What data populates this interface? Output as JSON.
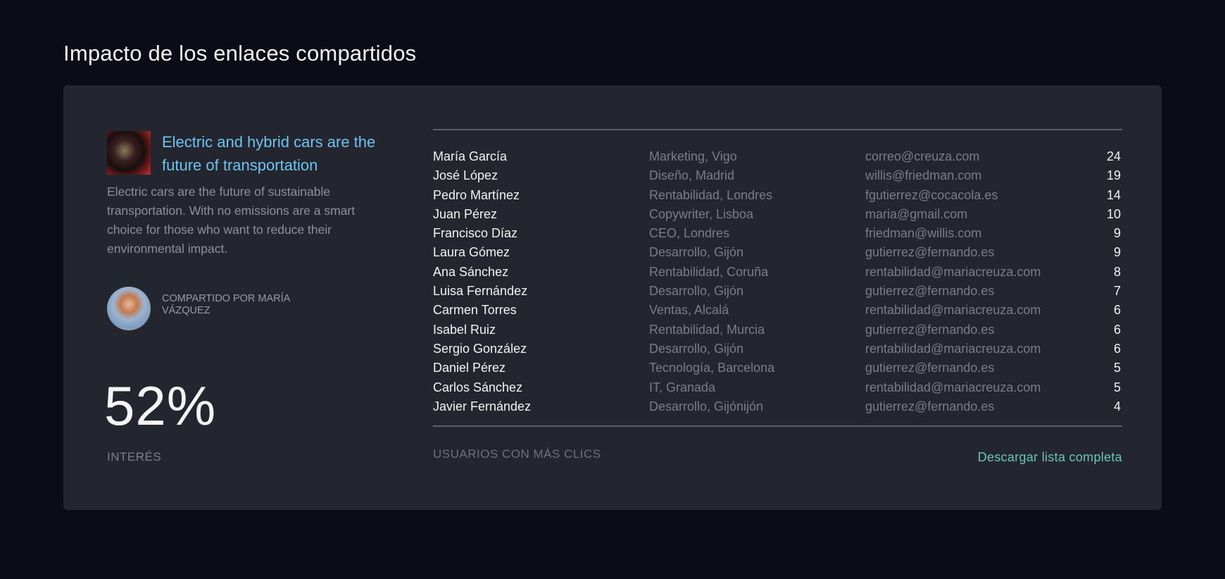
{
  "page_title": "Impacto de los enlaces compartidos",
  "article": {
    "title": "Electric and hybrid cars are the future of transportation",
    "description": "Electric cars are the future of sustainable transportation. With no emissions are a smart choice for those who want to reduce their environmental impact.",
    "shared_by": "COMPARTIDO POR MARÍA VÁZQUEZ"
  },
  "interest": {
    "value": "52%",
    "label": "INTERÉS"
  },
  "users": {
    "rows": [
      {
        "name": "María García",
        "dept": "Marketing, Vigo",
        "email": "correo@creuza.com",
        "clicks": "24"
      },
      {
        "name": "José López",
        "dept": "Diseño, Madrid",
        "email": "willis@friedman.com",
        "clicks": "19"
      },
      {
        "name": "Pedro Martínez",
        "dept": "Rentabilidad, Londres",
        "email": "fgutierrez@cocacola.es",
        "clicks": "14"
      },
      {
        "name": "Juan Pérez",
        "dept": "Copywriter, Lisboa",
        "email": "maria@gmail.com",
        "clicks": "10"
      },
      {
        "name": "Francisco Díaz",
        "dept": "CEO, Londres",
        "email": "friedman@willis.com",
        "clicks": "9"
      },
      {
        "name": "Laura Gómez",
        "dept": "Desarrollo, Gijón",
        "email": "gutierrez@fernando.es",
        "clicks": "9"
      },
      {
        "name": "Ana Sánchez",
        "dept": "Rentabilidad, Coruña",
        "email": "rentabilidad@mariacreuza.com",
        "clicks": "8"
      },
      {
        "name": "Luisa Fernández",
        "dept": "Desarrollo, Gijón",
        "email": "gutierrez@fernando.es",
        "clicks": "7"
      },
      {
        "name": "Carmen Torres",
        "dept": "Ventas, Alcalá",
        "email": "rentabilidad@mariacreuza.com",
        "clicks": "6"
      },
      {
        "name": "Isabel Ruiz",
        "dept": "Rentabilidad, Murcia",
        "email": "gutierrez@fernando.es",
        "clicks": "6"
      },
      {
        "name": "Sergio González",
        "dept": "Desarrollo, Gijón",
        "email": "rentabilidad@mariacreuza.com",
        "clicks": "6"
      },
      {
        "name": "Daniel Pérez",
        "dept": "Tecnología, Barcelona",
        "email": "gutierrez@fernando.es",
        "clicks": "5"
      },
      {
        "name": "Carlos Sánchez",
        "dept": "IT, Granada",
        "email": "rentabilidad@mariacreuza.com",
        "clicks": "5"
      },
      {
        "name": "Javier Fernández",
        "dept": "Desarrollo, Gijónijón",
        "email": "gutierrez@fernando.es",
        "clicks": "4"
      }
    ],
    "footer_label": "USUARIOS CON MÁS CLICS",
    "download_label": "Descargar lista completa"
  },
  "colors": {
    "background": "#0a0d16",
    "card": "#23262e",
    "headline": "#6ec3f0",
    "link": "#6cc4b4"
  }
}
